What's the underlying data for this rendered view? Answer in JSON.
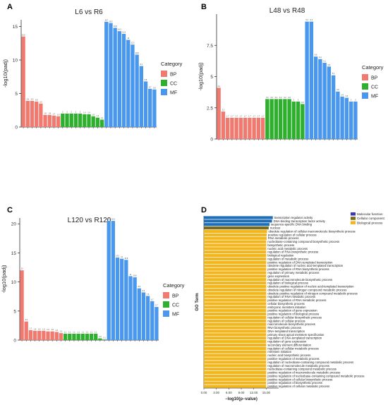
{
  "panels": {
    "A": {
      "letter": "A"
    },
    "B": {
      "letter": "B"
    },
    "C": {
      "letter": "C"
    },
    "D": {
      "letter": "D"
    }
  },
  "chart_data": [
    {
      "id": "A",
      "type": "bar",
      "title": "L6 vs R6",
      "ylabel": "-log10(padj)",
      "xlabel": "",
      "ylim": [
        0,
        16
      ],
      "yticks": [
        0,
        5,
        10,
        15
      ],
      "legend": {
        "title": "Category",
        "placement": "right"
      },
      "colors": {
        "BP": "#f07a70",
        "CC": "#2eb02e",
        "MF": "#4a98ee"
      },
      "series": [
        {
          "name": "BP",
          "values": [
            13.5,
            3.9,
            3.9,
            3.8,
            3.5,
            1.8,
            1.8,
            1.7,
            1.6
          ]
        },
        {
          "name": "CC",
          "values": [
            2.0,
            2.0,
            2.0,
            2.0,
            2.0,
            1.9,
            1.9,
            1.6,
            1.4,
            1.1
          ]
        },
        {
          "name": "MF",
          "values": [
            15.7,
            15.5,
            14.8,
            14.3,
            13.9,
            13.0,
            12.3,
            10.8,
            9.1,
            6.8,
            5.7,
            5.6
          ]
        }
      ]
    },
    {
      "id": "B",
      "type": "bar",
      "title": "L48 vs R48",
      "ylabel": "-log10(padj)",
      "xlabel": "",
      "ylim": [
        0,
        10
      ],
      "yticks": [
        0,
        2.5,
        5.0,
        7.5
      ],
      "legend": {
        "title": "Category",
        "placement": "right"
      },
      "colors": {
        "BP": "#f07a70",
        "CC": "#2eb02e",
        "MF": "#4a98ee"
      },
      "series": [
        {
          "name": "BP",
          "values": [
            4.1,
            2.2,
            1.7,
            1.7,
            1.7,
            1.7,
            1.7,
            1.7,
            1.7,
            1.7,
            1.7
          ]
        },
        {
          "name": "CC",
          "values": [
            3.2,
            3.2,
            3.2,
            3.2,
            3.2,
            3.2,
            3.0,
            3.0,
            2.8
          ]
        },
        {
          "name": "MF",
          "values": [
            9.4,
            9.4,
            6.6,
            6.4,
            6.1,
            5.8,
            5.1,
            3.8,
            3.4,
            3.3,
            3.0,
            3.0
          ]
        }
      ]
    },
    {
      "id": "C",
      "type": "bar",
      "title": "L120 vs R120",
      "ylabel": "-log10(padj)",
      "xlabel": "",
      "ylim": [
        0,
        21
      ],
      "yticks": [
        0,
        5,
        10,
        15,
        20
      ],
      "legend": {
        "title": "Category",
        "placement": "right"
      },
      "colors": {
        "BP": "#f07a70",
        "CC": "#2eb02e",
        "MF": "#4a98ee"
      },
      "series": [
        {
          "name": "BP",
          "values": [
            12.0,
            3.2,
            1.7,
            1.6,
            1.6,
            1.6,
            1.5,
            1.5,
            1.4,
            1.2
          ]
        },
        {
          "name": "CC",
          "values": [
            1.1,
            1.1,
            1.1,
            1.1,
            1.1,
            1.1,
            1.1,
            1.1,
            0.3,
            0.1
          ]
        },
        {
          "name": "MF",
          "values": [
            20.5,
            20.5,
            14.2,
            14.0,
            13.8,
            11.0,
            10.8,
            8.9,
            8.2,
            7.6,
            6.7,
            5.7
          ]
        }
      ]
    },
    {
      "id": "D",
      "type": "bar",
      "orientation": "horizontal",
      "xlabel": "−log10(p−value)",
      "ylabel": "GO Term",
      "xlim": [
        0,
        18
      ],
      "xticks": [
        "0.00",
        "3.00",
        "6.00",
        "9.00",
        "12.00",
        "15.00"
      ],
      "legend": {
        "placement": "top-right",
        "entries": [
          "Molecular function",
          "Cellular component",
          "Biological process"
        ]
      },
      "colors": {
        "Molecular function": "#3d38b4",
        "Cellular component": "#7b6c18",
        "Biological process": "#f2b51c",
        "Molecular function bar": "#1f6fb8"
      },
      "categories": [
        "transcription regulator activity",
        "DNA-binding transcription factor activity",
        "sequence-specific DNA binding",
        "nucleus",
        "obsolete regulation of cellular macromolecule biosynthetic process",
        "positive regulation of cellular process",
        "RNA metabolic process",
        "nucleobase-containing compound biosynthetic process",
        "biosynthetic process",
        "nucleic acid metabolic process",
        "regulation of RNA biosynthetic process",
        "biological regulation",
        "regulation of metabolic process",
        "positive regulation of DNA-templated transcription",
        "obsolete regulation of nucleic acid-templated transcription",
        "positive regulation of RNA biosynthetic process",
        "regulation of primary metabolic process",
        "gene expression",
        "regulation of macromolecule biosynthetic process",
        "regulation of biological process",
        "obsolete positive regulation of nucleic acid-templated transcription",
        "obsolete regulation of nitrogen compound metabolic process",
        "obsolete positive regulation of nitrogen compound metabolic process",
        "regulation of RNA metabolic process",
        "positive regulation of RNA metabolic process",
        "cellular biosynthetic process",
        "embryonic meristem initiation",
        "positive regulation of gene expression",
        "positive regulation of biological process",
        "regulation of cellular biosynthetic process",
        "regulation of cellular process",
        "macromolecule biosynthetic process",
        "RNA biosynthetic process",
        "DNA-templated transcription",
        "primary shoot apical meristem specification",
        "regulation of DNA-templated transcription",
        "regulation of gene expression",
        "secondary element differentiation",
        "regulation of cellular metabolic process",
        "meristem initiation",
        "nucleic acid biosynthetic process",
        "positive regulation of metabolic process",
        "regulation of nucleobase-containing compound metabolic process",
        "regulation of macromolecule metabolic process",
        "nucleobase-containing compound metabolic process",
        "positive regulation of macromolecule metabolic process",
        "positive regulation of nucleobase-containing compound metabolic process",
        "positive regulation of cellular biosynthetic process",
        "positive regulation of biosynthetic process",
        "positive regulation of cellular metabolic process"
      ],
      "values": [
        16.6,
        16.4,
        15.8,
        15.6,
        15.2,
        15.1,
        15.1,
        15.0,
        15.0,
        15.0,
        15.0,
        15.0,
        15.0,
        15.0,
        15.0,
        15.0,
        15.0,
        15.0,
        15.0,
        15.0,
        15.0,
        15.0,
        15.0,
        15.0,
        15.0,
        15.0,
        15.0,
        15.0,
        15.0,
        15.0,
        15.0,
        15.0,
        15.0,
        15.0,
        15.0,
        15.0,
        15.0,
        15.0,
        15.0,
        15.0,
        15.0,
        15.0,
        15.0,
        15.0,
        15.0,
        15.0,
        15.0,
        15.0,
        15.0,
        15.0
      ],
      "groups": [
        "Molecular function",
        "Molecular function",
        "Molecular function",
        "Cellular component",
        "Biological process",
        "Biological process",
        "Biological process",
        "Biological process",
        "Biological process",
        "Biological process",
        "Biological process",
        "Biological process",
        "Biological process",
        "Biological process",
        "Biological process",
        "Biological process",
        "Biological process",
        "Biological process",
        "Biological process",
        "Biological process",
        "Biological process",
        "Biological process",
        "Biological process",
        "Biological process",
        "Biological process",
        "Biological process",
        "Biological process",
        "Biological process",
        "Biological process",
        "Biological process",
        "Biological process",
        "Biological process",
        "Biological process",
        "Biological process",
        "Biological process",
        "Biological process",
        "Biological process",
        "Biological process",
        "Biological process",
        "Biological process",
        "Biological process",
        "Biological process",
        "Biological process",
        "Biological process",
        "Biological process",
        "Biological process",
        "Biological process",
        "Biological process",
        "Biological process",
        "Biological process"
      ]
    }
  ]
}
